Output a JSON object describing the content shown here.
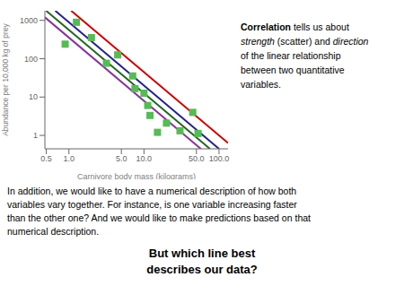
{
  "chart_data": {
    "type": "scatter",
    "log": true,
    "x_label": "Carnivore body mass (kilograms)",
    "y_label": "Abundance per 10,000 kg of prey",
    "xlim": [
      0.4786301,
      131.8257
    ],
    "ylim": [
      0.4466836,
      1778.279
    ],
    "xticks": [
      0.5,
      {
        "value": 1,
        "label": "1.0"
      },
      {
        "value": 5,
        "label": "5.0"
      },
      {
        "value": 10,
        "label": "10.0"
      },
      {
        "value": 50,
        "label": "50.0"
      },
      {
        "value": 100,
        "label": "100.0"
      }
    ],
    "yticks": [
      1,
      10,
      100,
      1000
    ],
    "series": [
      {
        "type": "scatter",
        "color": "#55bb55",
        "marker": "square",
        "x": [
          1.258925,
          1.995262,
          4.466836,
          7.079458,
          10,
          11.22018,
          19.95262,
          30.19952,
          44.66836,
          52.48075,
          0.8912509,
          3.162278,
          7.585776,
          12.02264,
          15.13561
        ],
        "values": [
          891.2509,
          354.8134,
          125.8925,
          35.48134,
          12.58925,
          6.025596,
          2.089296,
          1.318257,
          3.981072,
          1.122018,
          239.8833,
          75.85776,
          16.59587,
          3.311311,
          1.202264
        ]
      },
      {
        "type": "line",
        "color": "#cc0000",
        "x": [
          1.072268,
          131.8257
        ],
        "values": [
          1778.279,
          0.633869
        ]
      },
      {
        "type": "line",
        "color": "#222288",
        "x": [
          0.657934,
          100
        ],
        "values": [
          1778.279,
          0.4466836
        ]
      },
      {
        "type": "line",
        "color": "#226622",
        "x": [
          0.497702,
          75.64627
        ],
        "values": [
          1778.279,
          0.4466836
        ]
      },
      {
        "type": "line",
        "color": "#883399",
        "x": [
          0.4786301,
          57.22369
        ],
        "values": [
          1196.74,
          0.4466836
        ]
      }
    ],
    "annotations": [
      [
        [
          "Correlation",
          " tells us about"
        ],
        [
          "strength",
          " (scatter) and ",
          "direction"
        ],
        [
          "of the linear relationship"
        ],
        [
          "between two quantitative"
        ],
        [
          "variables."
        ]
      ],
      [
        [
          "In addition, we would like to have a numerical description of how both"
        ],
        [
          "variables vary together. For instance, is one variable increasing faster"
        ],
        [
          "than the other one? And we would like to make predictions based on that"
        ],
        [
          "numerical description."
        ]
      ],
      [
        [
          "But which line best"
        ],
        [
          "describes our data?"
        ]
      ]
    ]
  }
}
